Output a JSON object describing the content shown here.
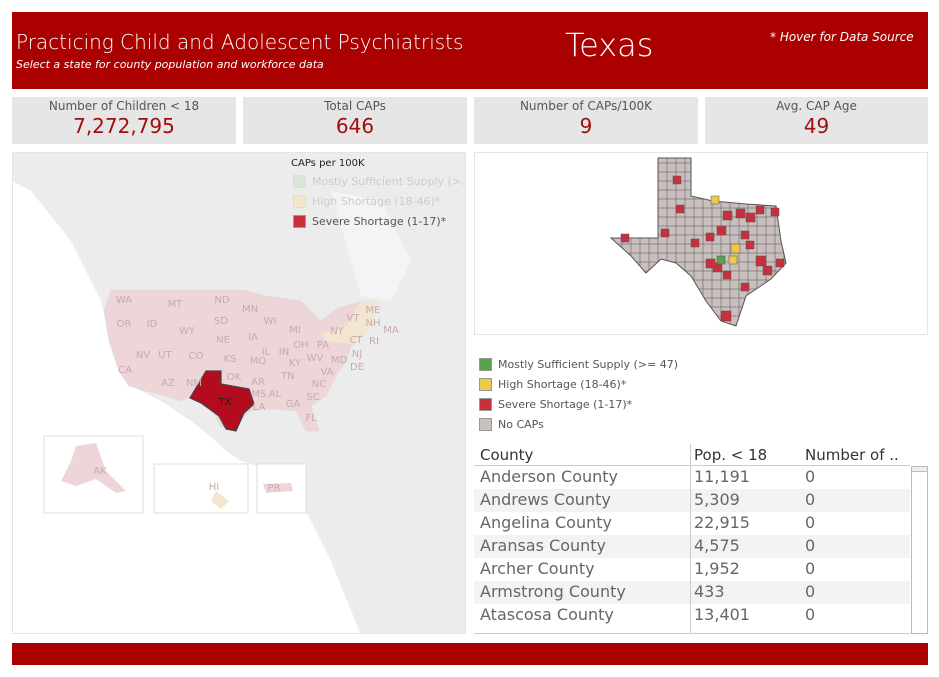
{
  "header": {
    "title": "Practicing Child and Adolescent Psychiatrists",
    "subtitle": "Select a state for county population and workforce data",
    "state": "Texas",
    "hover_note": "* Hover for Data Source"
  },
  "kpis": [
    {
      "label": "Number of Children < 18",
      "value": "7,272,795"
    },
    {
      "label": "Total CAPs",
      "value": "646"
    },
    {
      "label": "Number of CAPs/100K",
      "value": "9"
    },
    {
      "label": "Avg. CAP Age",
      "value": "49"
    }
  ],
  "us_legend": {
    "title": "CAPs per 100K",
    "items": [
      "Mostly Sufficient Supply (>..",
      "High Shortage (18-46)*",
      "Severe Shortage (1-17)*"
    ]
  },
  "state_labels": [
    "WA",
    "MT",
    "ND",
    "MN",
    "OR",
    "ID",
    "WY",
    "SD",
    "WI",
    "MI",
    "NY",
    "ME",
    "VT",
    "NH",
    "MA",
    "CT",
    "RI",
    "NE",
    "IA",
    "PA",
    "NJ",
    "IL",
    "IN",
    "OH",
    "NV",
    "UT",
    "CO",
    "KS",
    "MO",
    "KY",
    "WV",
    "VA",
    "MD",
    "DE",
    "CA",
    "AZ",
    "NM",
    "OK",
    "AR",
    "TN",
    "NC",
    "SC",
    "MS",
    "AL",
    "GA",
    "LA",
    "FL",
    "TX",
    "AK",
    "HI",
    "PR"
  ],
  "county_legend": {
    "items": [
      "Mostly Sufficient Supply (>= 47)",
      "High Shortage (18-46)*",
      "Severe Shortage (1-17)*",
      "No CAPs"
    ]
  },
  "colors": {
    "brand": "#aa0000",
    "sufficient": "#59a14f",
    "high": "#edc948",
    "severe": "#c8303e",
    "none": "#c9bfbd"
  },
  "table": {
    "columns": [
      "County",
      "Pop. < 18",
      "Number of .."
    ],
    "rows": [
      [
        "Anderson County",
        "11,191",
        "0"
      ],
      [
        "Andrews County",
        "5,309",
        "0"
      ],
      [
        "Angelina County",
        "22,915",
        "0"
      ],
      [
        "Aransas County",
        "4,575",
        "0"
      ],
      [
        "Archer County",
        "1,952",
        "0"
      ],
      [
        "Armstrong County",
        "433",
        "0"
      ],
      [
        "Atascosa County",
        "13,401",
        "0"
      ]
    ]
  }
}
